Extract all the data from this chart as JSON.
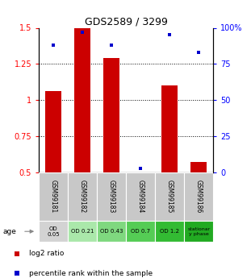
{
  "title": "GDS2589 / 3299",
  "samples": [
    "GSM99181",
    "GSM99182",
    "GSM99183",
    "GSM99184",
    "GSM99185",
    "GSM99186"
  ],
  "log2_ratio": [
    1.06,
    1.5,
    1.29,
    0.5,
    1.1,
    0.57
  ],
  "percentile_rank": [
    88,
    97,
    88,
    3,
    95,
    83
  ],
  "bar_color": "#cc0000",
  "dot_color": "#0000cc",
  "ylim_left": [
    0.5,
    1.5
  ],
  "ylim_right": [
    0,
    100
  ],
  "yticks_left": [
    0.5,
    0.75,
    1.0,
    1.25,
    1.5
  ],
  "yticks_right": [
    0,
    25,
    50,
    75,
    100
  ],
  "ytick_labels_left": [
    "0.5",
    "0.75",
    "1",
    "1.25",
    "1.5"
  ],
  "ytick_labels_right": [
    "0",
    "25",
    "50",
    "75",
    "100%"
  ],
  "hlines": [
    0.75,
    1.0,
    1.25
  ],
  "age_labels": [
    "OD\n0.05",
    "OD 0.21",
    "OD 0.43",
    "OD 0.7",
    "OD 1.2",
    "stationar\ny phase"
  ],
  "age_colors": [
    "#d3d3d3",
    "#aae8aa",
    "#7fd87f",
    "#55cc55",
    "#33bb33",
    "#22aa22"
  ],
  "sample_bg_color": "#c8c8c8",
  "legend_red_label": "log2 ratio",
  "legend_blue_label": "percentile rank within the sample",
  "bar_width": 0.55
}
